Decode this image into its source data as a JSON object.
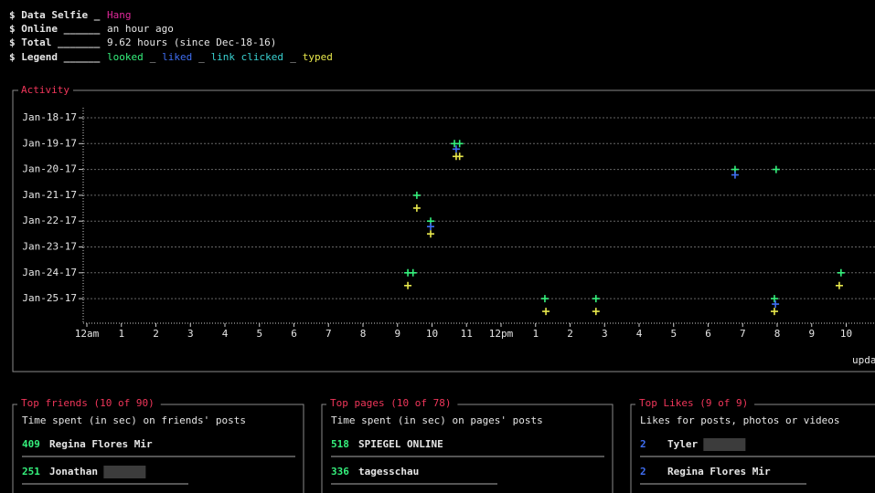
{
  "header": {
    "lines": [
      {
        "label": "$ Data Selfie _",
        "value": "Hang"
      },
      {
        "label": "$ Online ______",
        "value": "an hour ago"
      },
      {
        "label": "$ Total _______",
        "value": "9.62 hours (since Dec-18-16)"
      },
      {
        "label": "$ Legend ______"
      }
    ],
    "legend_separator": "_"
  },
  "chart_data": {
    "type": "scatter",
    "title": "Activity",
    "categories": [
      "Jan-18-17",
      "Jan-19-17",
      "Jan-20-17",
      "Jan-21-17",
      "Jan-22-17",
      "Jan-23-17",
      "Jan-24-17",
      "Jan-25-17"
    ],
    "xlim": [
      -0.1,
      22.8
    ],
    "xticks": [
      {
        "value": 0,
        "label": "12am"
      },
      1,
      2,
      3,
      4,
      5,
      6,
      7,
      8,
      9,
      10,
      11,
      {
        "value": 12,
        "label": "12pm"
      },
      {
        "value": 13,
        "label": "1"
      },
      {
        "value": 14,
        "label": "2"
      },
      {
        "value": 15,
        "label": "3"
      },
      {
        "value": 16,
        "label": "4"
      },
      {
        "value": 17,
        "label": "5"
      },
      {
        "value": 18,
        "label": "6"
      },
      {
        "value": 19,
        "label": "7"
      },
      {
        "value": 20,
        "label": "8"
      },
      {
        "value": 21,
        "label": "9"
      },
      {
        "value": 22,
        "label": "10"
      }
    ],
    "grid": true,
    "series": [
      {
        "name": "looked",
        "color": "#35f07c",
        "x": [
          10.65,
          10.8,
          9.56,
          9.96,
          9.3,
          9.45,
          13.27,
          14.75,
          18.78,
          19.97,
          19.92,
          21.85
        ],
        "y": [
          "Jan-19-17",
          "Jan-19-17",
          "Jan-21-17",
          "Jan-22-17",
          "Jan-24-17",
          "Jan-24-17",
          "Jan-25-17",
          "Jan-25-17",
          "Jan-20-17",
          "Jan-20-17",
          "Jan-25-17",
          "Jan-24-17"
        ]
      },
      {
        "name": "liked",
        "color": "#3f6ef2",
        "x": [
          10.7,
          9.96,
          18.78,
          19.95
        ],
        "y": [
          "Jan-19-17",
          "Jan-22-17",
          "Jan-20-17",
          "Jan-25-17"
        ]
      },
      {
        "name": "link clicked",
        "color": "#3ad2d2",
        "x": [],
        "y": []
      },
      {
        "name": "typed",
        "color": "#e8e84c",
        "x": [
          10.7,
          10.8,
          9.56,
          9.96,
          9.3,
          13.3,
          14.75,
          19.92,
          21.8
        ],
        "y": [
          "Jan-19-17",
          "Jan-19-17",
          "Jan-21-17",
          "Jan-22-17",
          "Jan-24-17",
          "Jan-25-17",
          "Jan-25-17",
          "Jan-25-17",
          "Jan-24-17"
        ]
      }
    ],
    "footnote": "updat"
  },
  "panels": [
    {
      "title": "Top friends (10 of 90)",
      "subtitle": "Time spent (in sec) on friends' posts",
      "rows": [
        {
          "value": 409,
          "name": "Regina Flores Mir"
        },
        {
          "value": 251,
          "name": "Jonathan"
        }
      ]
    },
    {
      "title": "Top pages (10 of 78)",
      "subtitle": "Time spent (in sec) on pages' posts",
      "rows": [
        {
          "value": 518,
          "name": "SPIEGEL ONLINE"
        },
        {
          "value": 336,
          "name": "tagesschau"
        }
      ]
    },
    {
      "title": "Top Likes (9 of 9)",
      "subtitle": "Likes for posts, photos or videos",
      "rows": [
        {
          "value": 2,
          "name": "Tyler"
        },
        {
          "value": 2,
          "name": "Regina Flores Mir"
        }
      ]
    }
  ]
}
